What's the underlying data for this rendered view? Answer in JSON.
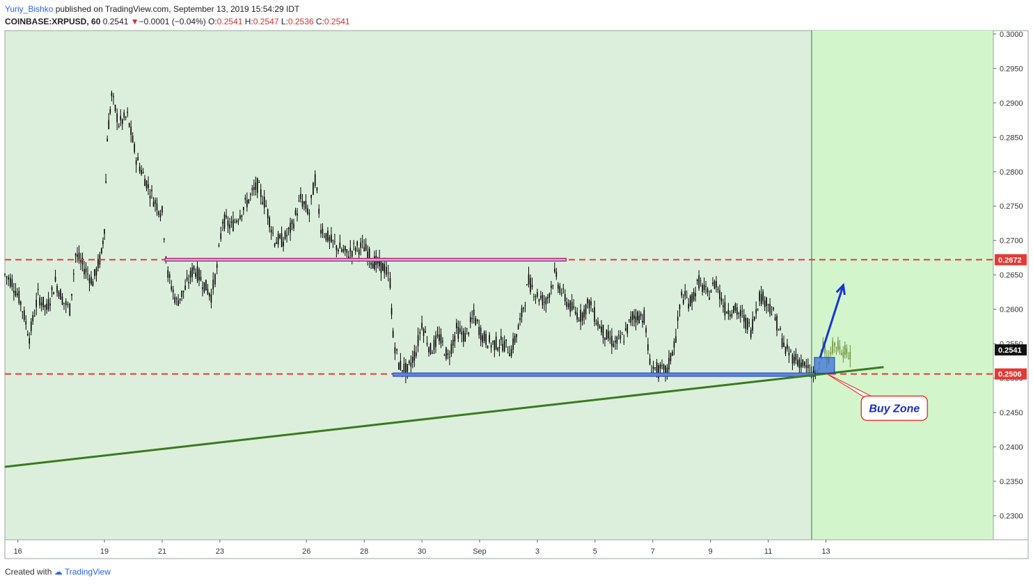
{
  "header": {
    "author": "Yuriy_Bishko",
    "published": "published on TradingView.com, September 13, 2019 15:54:29 IDT",
    "symbol": "COINBASE:XRPUSD, 60",
    "last": "0.2541",
    "change": "−0.0001 (−0.04%)",
    "o_label": "O:",
    "o": "0.2541",
    "h_label": "H:",
    "h": "0.2547",
    "l_label": "L:",
    "l": "0.2536",
    "c_label": "C:",
    "c": "0.2541"
  },
  "footer": {
    "created_with": "Created with",
    "brand": "TradingView"
  },
  "colors": {
    "bg_zone": "#dcefdc",
    "bg_future": "#d3f5cc",
    "candle": "#000000",
    "resistance": "#e53935",
    "trendline": "#3a7a1e",
    "arrow": "#1a33d6",
    "box_fill": "#3a6fd8",
    "pink_bar": "#c2185b"
  },
  "chart_data": {
    "type": "line",
    "title": "COINBASE:XRPUSD, 60",
    "ylim": [
      0.2265,
      0.3005
    ],
    "y_ticks": [
      "0.2300",
      "0.2350",
      "0.2400",
      "0.2450",
      "0.2500",
      "0.2550",
      "0.2600",
      "0.2650",
      "0.2700",
      "0.2750",
      "0.2800",
      "0.2850",
      "0.2900",
      "0.2950",
      "0.3000"
    ],
    "x_ticks": [
      {
        "label": "16",
        "day": 16
      },
      {
        "label": "19",
        "day": 19
      },
      {
        "label": "21",
        "day": 21
      },
      {
        "label": "23",
        "day": 23
      },
      {
        "label": "26",
        "day": 26
      },
      {
        "label": "28",
        "day": 28
      },
      {
        "label": "30",
        "day": 30
      },
      {
        "label": "Sep",
        "day": 32
      },
      {
        "label": "3",
        "day": 34
      },
      {
        "label": "5",
        "day": 36
      },
      {
        "label": "7",
        "day": 38
      },
      {
        "label": "9",
        "day": 40
      },
      {
        "label": "11",
        "day": 42
      },
      {
        "label": "13",
        "day": 44
      }
    ],
    "x_range_days": [
      15.55,
      49.8
    ],
    "price_series": {
      "name": "XRPUSD close (approx, hourly shape)",
      "points": [
        [
          15.55,
          0.265
        ],
        [
          15.8,
          0.264
        ],
        [
          16.1,
          0.261
        ],
        [
          16.4,
          0.256
        ],
        [
          16.7,
          0.262
        ],
        [
          17.0,
          0.26
        ],
        [
          17.3,
          0.264
        ],
        [
          17.6,
          0.261
        ],
        [
          17.8,
          0.26
        ],
        [
          18.0,
          0.268
        ],
        [
          18.3,
          0.266
        ],
        [
          18.6,
          0.264
        ],
        [
          18.9,
          0.268
        ],
        [
          19.0,
          0.272
        ],
        [
          19.1,
          0.285
        ],
        [
          19.25,
          0.291
        ],
        [
          19.5,
          0.287
        ],
        [
          19.8,
          0.288
        ],
        [
          20.1,
          0.282
        ],
        [
          20.4,
          0.279
        ],
        [
          20.7,
          0.276
        ],
        [
          21.0,
          0.274
        ],
        [
          21.2,
          0.265
        ],
        [
          21.5,
          0.261
        ],
        [
          21.8,
          0.263
        ],
        [
          22.1,
          0.266
        ],
        [
          22.4,
          0.264
        ],
        [
          22.7,
          0.262
        ],
        [
          22.9,
          0.266
        ],
        [
          23.1,
          0.273
        ],
        [
          23.4,
          0.272
        ],
        [
          23.7,
          0.274
        ],
        [
          24.0,
          0.276
        ],
        [
          24.3,
          0.278
        ],
        [
          24.6,
          0.275
        ],
        [
          24.9,
          0.27
        ],
        [
          25.2,
          0.27
        ],
        [
          25.5,
          0.272
        ],
        [
          25.8,
          0.276
        ],
        [
          26.1,
          0.274
        ],
        [
          26.3,
          0.279
        ],
        [
          26.5,
          0.272
        ],
        [
          26.8,
          0.27
        ],
        [
          27.1,
          0.269
        ],
        [
          27.4,
          0.268
        ],
        [
          27.7,
          0.269
        ],
        [
          28.0,
          0.269
        ],
        [
          28.3,
          0.267
        ],
        [
          28.7,
          0.266
        ],
        [
          28.9,
          0.264
        ],
        [
          29.0,
          0.256
        ],
        [
          29.2,
          0.252
        ],
        [
          29.5,
          0.251
        ],
        [
          29.8,
          0.254
        ],
        [
          30.0,
          0.258
        ],
        [
          30.3,
          0.254
        ],
        [
          30.6,
          0.256
        ],
        [
          30.9,
          0.253
        ],
        [
          31.2,
          0.257
        ],
        [
          31.5,
          0.256
        ],
        [
          31.8,
          0.259
        ],
        [
          32.1,
          0.256
        ],
        [
          32.4,
          0.255
        ],
        [
          32.8,
          0.255
        ],
        [
          33.1,
          0.254
        ],
        [
          33.4,
          0.258
        ],
        [
          33.7,
          0.264
        ],
        [
          34.0,
          0.262
        ],
        [
          34.3,
          0.261
        ],
        [
          34.6,
          0.265
        ],
        [
          34.9,
          0.262
        ],
        [
          35.2,
          0.26
        ],
        [
          35.5,
          0.259
        ],
        [
          35.8,
          0.261
        ],
        [
          36.1,
          0.258
        ],
        [
          36.4,
          0.256
        ],
        [
          36.7,
          0.255
        ],
        [
          37.0,
          0.256
        ],
        [
          37.3,
          0.259
        ],
        [
          37.7,
          0.259
        ],
        [
          37.9,
          0.252
        ],
        [
          38.2,
          0.251
        ],
        [
          38.5,
          0.251
        ],
        [
          38.8,
          0.256
        ],
        [
          39.0,
          0.262
        ],
        [
          39.3,
          0.261
        ],
        [
          39.6,
          0.264
        ],
        [
          39.9,
          0.262
        ],
        [
          40.2,
          0.264
        ],
        [
          40.5,
          0.26
        ],
        [
          40.8,
          0.26
        ],
        [
          41.1,
          0.259
        ],
        [
          41.4,
          0.257
        ],
        [
          41.7,
          0.262
        ],
        [
          42.0,
          0.261
        ],
        [
          42.3,
          0.258
        ],
        [
          42.6,
          0.254
        ],
        [
          42.9,
          0.253
        ],
        [
          43.2,
          0.252
        ],
        [
          43.5,
          0.2505
        ],
        [
          43.7,
          0.251
        ]
      ]
    },
    "projection_series": {
      "name": "Projected path",
      "points": [
        [
          43.7,
          0.251
        ],
        [
          43.9,
          0.255
        ],
        [
          44.1,
          0.253
        ],
        [
          44.3,
          0.255
        ],
        [
          44.6,
          0.254
        ],
        [
          44.9,
          0.253
        ]
      ]
    },
    "resistance_level": 0.2672,
    "support_level": 0.2506,
    "last_price": 0.2541,
    "price_labels": [
      "0.2672",
      "0.2541",
      "0.2506"
    ],
    "trendline": {
      "from": [
        15.55,
        0.2371
      ],
      "to": [
        46.0,
        0.2516
      ]
    },
    "resistance_bar": {
      "from_day": 21.1,
      "to_day": 35.0,
      "price": 0.2672
    },
    "support_bar": {
      "from_day": 29.0,
      "to_day": 43.6,
      "price": 0.2505
    },
    "buy_zone_box": {
      "from_day": 43.6,
      "to_day": 44.3,
      "low": 0.2507,
      "high": 0.253
    },
    "arrow": {
      "from": [
        43.8,
        0.253
      ],
      "to": [
        44.6,
        0.2635
      ]
    },
    "projection_start_day": 43.55,
    "annotation": "Buy Zone"
  }
}
